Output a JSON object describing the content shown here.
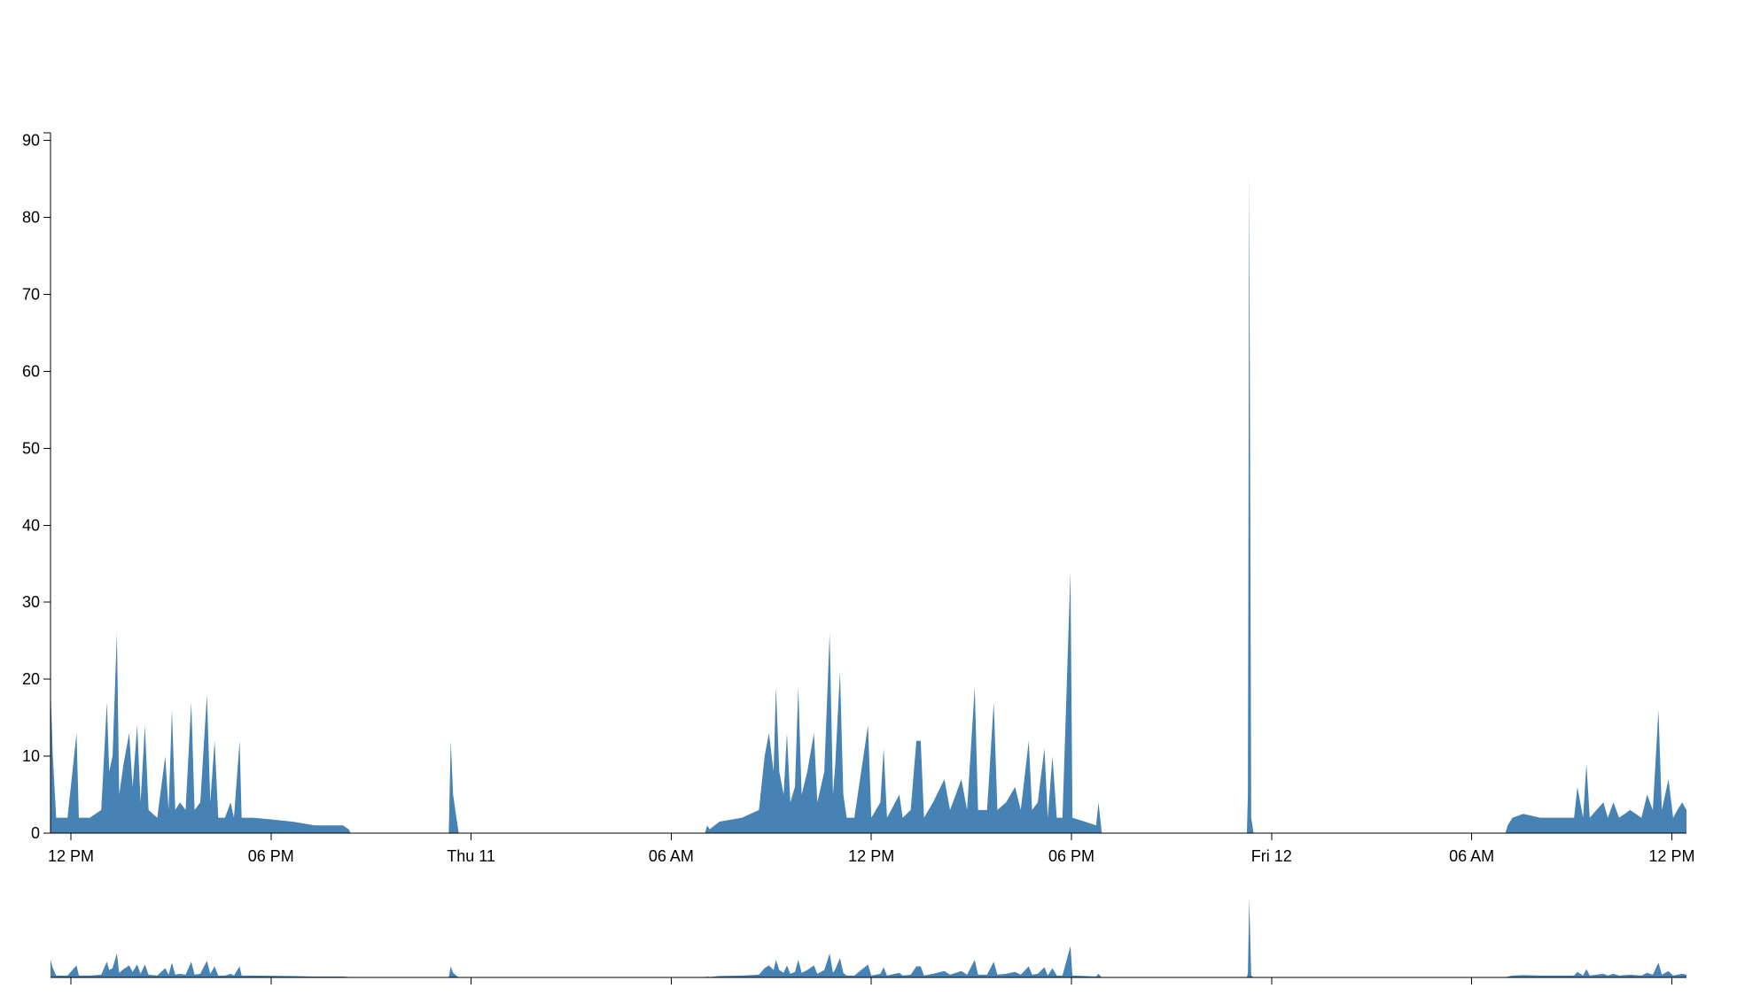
{
  "chart_data": {
    "type": "area",
    "color": "#4682b4",
    "x": [
      -12.61,
      -12.54,
      -12.44,
      -12.1,
      -11.83,
      -11.76,
      -11.43,
      -11.09,
      -10.92,
      -10.85,
      -10.75,
      -10.62,
      -10.55,
      -10.42,
      -10.25,
      -10.15,
      -10.01,
      -9.91,
      -9.78,
      -9.67,
      -9.41,
      -9.17,
      -9.07,
      -8.97,
      -8.87,
      -8.73,
      -8.56,
      -8.39,
      -8.29,
      -8.12,
      -7.92,
      -7.82,
      -7.69,
      -7.58,
      -7.38,
      -7.21,
      -7.11,
      -6.94,
      -6.88,
      -6.54,
      -6.03,
      -5.36,
      -4.69,
      -3.84,
      -3.67,
      -3.61,
      -0.67,
      -0.61,
      -0.54,
      -0.44,
      -0.37,
      7.01,
      7.08,
      7.15,
      7.45,
      8.12,
      8.63,
      8.8,
      8.93,
      9.07,
      9.14,
      9.24,
      9.37,
      9.47,
      9.57,
      9.71,
      9.81,
      9.91,
      10.08,
      10.28,
      10.38,
      10.59,
      10.75,
      10.85,
      10.92,
      11.06,
      11.16,
      11.26,
      11.49,
      11.9,
      12.0,
      12.27,
      12.37,
      12.47,
      12.84,
      12.94,
      13.18,
      13.35,
      13.48,
      13.58,
      13.85,
      14.19,
      14.36,
      14.7,
      14.87,
      15.1,
      15.2,
      15.47,
      15.67,
      15.78,
      16.04,
      16.31,
      16.48,
      16.72,
      16.82,
      16.99,
      17.19,
      17.29,
      17.43,
      17.56,
      17.73,
      17.97,
      18.03,
      18.4,
      18.74,
      18.81,
      18.91,
      23.26,
      23.29,
      23.33,
      23.39,
      23.46,
      31.01,
      31.08,
      31.22,
      31.55,
      32.06,
      32.56,
      33.07,
      33.17,
      33.34,
      33.44,
      33.54,
      33.74,
      33.95,
      34.08,
      34.25,
      34.42,
      34.75,
      35.09,
      35.26,
      35.43,
      35.6,
      35.7,
      35.9,
      36.04,
      36.17,
      36.31,
      36.44
    ],
    "values": [
      19,
      10,
      2,
      2,
      13,
      2,
      2,
      3,
      17,
      8,
      10,
      26,
      5,
      9,
      13,
      6,
      14,
      4,
      14,
      3,
      2,
      10,
      3,
      16,
      3,
      4,
      3,
      17,
      3,
      4,
      18,
      4,
      12,
      2,
      2,
      4,
      2,
      12,
      2,
      2,
      1.8,
      1.5,
      1,
      1,
      0.5,
      0,
      0,
      12,
      5,
      2,
      0,
      0,
      1,
      0.5,
      1.5,
      2,
      3,
      10,
      13,
      8,
      19,
      8,
      5,
      13,
      4,
      6,
      19,
      5,
      8,
      13,
      4,
      8,
      26,
      5,
      9,
      21,
      5,
      2,
      2,
      14,
      2,
      4,
      11,
      2,
      5,
      2,
      3,
      12,
      12,
      2,
      4,
      7,
      3,
      7,
      3,
      19,
      3,
      3,
      17,
      3,
      4,
      6,
      3,
      12,
      3,
      4,
      11,
      2,
      10,
      2,
      2,
      34,
      2,
      1.5,
      1,
      4,
      0,
      0,
      5,
      86,
      2,
      0,
      0,
      1,
      2,
      2.5,
      2,
      2,
      2,
      6,
      2,
      9,
      2,
      3,
      4,
      2,
      4,
      2,
      3,
      2,
      5,
      3,
      16,
      3,
      7,
      2,
      3,
      4,
      3
    ],
    "xlim": [
      -12.61,
      36.44
    ],
    "ylim": [
      0,
      91
    ],
    "yticks": [
      0,
      10,
      20,
      30,
      40,
      50,
      60,
      70,
      80,
      90
    ],
    "xticks": [
      {
        "value": -12,
        "label": "12 PM"
      },
      {
        "value": -6,
        "label": "06 PM"
      },
      {
        "value": 0,
        "label": "Thu 11"
      },
      {
        "value": 6,
        "label": "06 AM"
      },
      {
        "value": 12,
        "label": "12 PM"
      },
      {
        "value": 18,
        "label": "06 PM"
      },
      {
        "value": 24,
        "label": "Fri 12"
      },
      {
        "value": 30,
        "label": "06 AM"
      },
      {
        "value": 36,
        "label": "12 PM"
      }
    ]
  }
}
